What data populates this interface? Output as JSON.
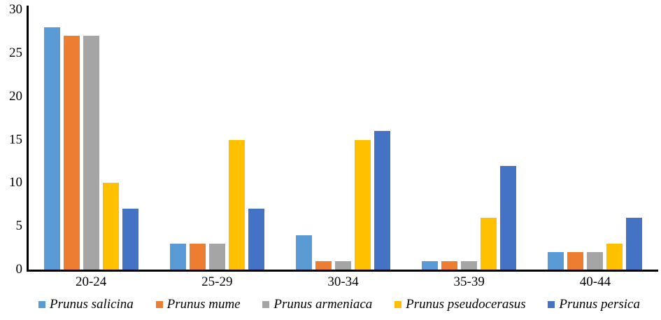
{
  "chart_data": {
    "type": "bar",
    "title": "",
    "xlabel": "",
    "ylabel": "",
    "categories": [
      "20-24",
      "25-29",
      "30-34",
      "35-39",
      "40-44"
    ],
    "series": [
      {
        "name": "Prunus salicina",
        "color": "#5B9BD5",
        "values": [
          28,
          3,
          4,
          1,
          2
        ]
      },
      {
        "name": "Prunus mume",
        "color": "#ED7D31",
        "values": [
          27,
          3,
          1,
          1,
          2
        ]
      },
      {
        "name": "Prunus armeniaca",
        "color": "#A5A5A5",
        "values": [
          27,
          3,
          1,
          1,
          2
        ]
      },
      {
        "name": "Prunus pseudocerasus",
        "color": "#FFC000",
        "values": [
          10,
          15,
          15,
          6,
          3
        ]
      },
      {
        "name": "Prunus persica",
        "color": "#4472C4",
        "values": [
          7,
          7,
          16,
          12,
          6
        ]
      }
    ],
    "y_ticks": [
      0,
      5,
      10,
      15,
      20,
      25,
      30
    ],
    "ylim": [
      0,
      30
    ],
    "grid": false,
    "legend_position": "bottom",
    "axis_color": "#000000",
    "background_color": "#FFFFFF"
  }
}
